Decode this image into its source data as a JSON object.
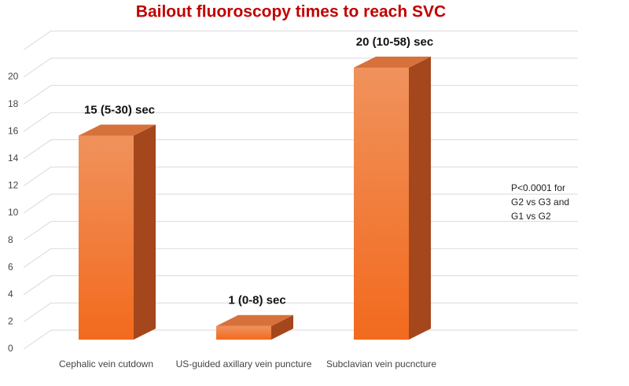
{
  "chart_data": {
    "type": "bar3d",
    "title": "Bailout fluoroscopy times to reach SVC",
    "categories": [
      "Cephalic vein cutdown",
      "US-guided axillary vein puncture",
      "Subclavian vein pucncture"
    ],
    "values": [
      15,
      1,
      20
    ],
    "value_labels": [
      "15 (5-30) sec",
      "1 (0-8) sec",
      "20 (10-58) sec"
    ],
    "color": "#f07030",
    "ylim": [
      0,
      22
    ],
    "yticks": [
      0,
      2,
      4,
      6,
      8,
      10,
      12,
      14,
      16,
      18,
      20
    ],
    "grid": true,
    "annotation": [
      "P<0.0001 for",
      "G2 vs G3 and",
      "G1 vs G2"
    ]
  }
}
